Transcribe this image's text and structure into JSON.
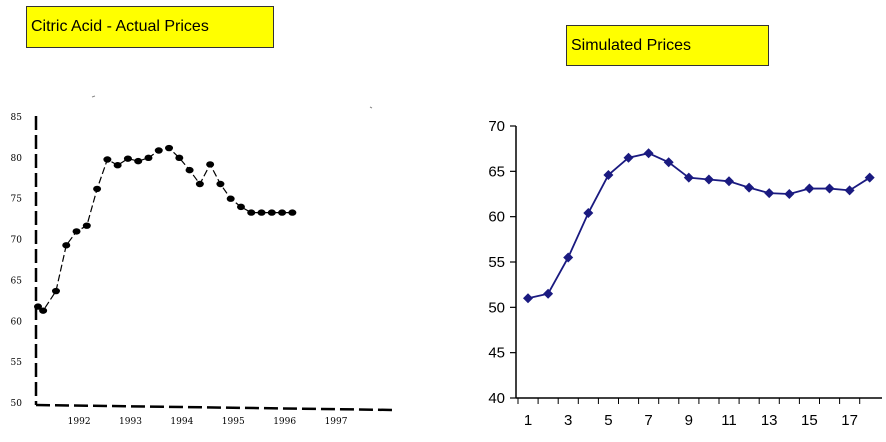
{
  "chart_data": [
    {
      "type": "line",
      "title": "Citric Acid - Actual Prices",
      "xlabel": "",
      "ylabel": "",
      "x_tick_labels": [
        "1992",
        "1993",
        "1994",
        "1995",
        "1996",
        "1997"
      ],
      "y_tick_labels": [
        "85",
        "80",
        "75",
        "70",
        "65",
        "60",
        "55",
        "50"
      ],
      "ylim": [
        50,
        85
      ],
      "xlim": [
        1991.2,
        1997.7
      ],
      "grid": false,
      "style": "dashed hand-drawn line with black dot markers",
      "series": [
        {
          "x": [
            1991.2,
            1991.3,
            1991.55,
            1991.75,
            1991.95,
            1992.15,
            1992.35,
            1992.55,
            1992.75,
            1992.95,
            1993.15,
            1993.35,
            1993.55,
            1993.75,
            1993.95,
            1994.15,
            1994.35,
            1994.55,
            1994.75,
            1994.95,
            1995.15,
            1995.35,
            1995.55,
            1995.75,
            1995.95,
            1996.15
          ],
          "y": [
            61.8,
            61.3,
            63.7,
            69.3,
            71.0,
            71.7,
            76.2,
            79.8,
            79.1,
            79.9,
            79.6,
            80.0,
            80.9,
            81.2,
            80.0,
            78.5,
            76.8,
            79.2,
            76.8,
            75.0,
            74.0,
            73.3,
            73.3,
            73.3,
            73.3,
            73.3
          ]
        }
      ]
    },
    {
      "type": "line",
      "title": "Simulated Prices",
      "xlabel": "",
      "ylabel": "",
      "x_tick_labels": [
        "1",
        "3",
        "5",
        "7",
        "9",
        "11",
        "13",
        "15",
        "17"
      ],
      "y_tick_labels": [
        "70",
        "65",
        "60",
        "55",
        "50",
        "45",
        "40"
      ],
      "ylim": [
        40,
        70
      ],
      "xlim": [
        1,
        18
      ],
      "grid": false,
      "series_color": "#1a1a80",
      "series": [
        {
          "x": [
            1,
            2,
            3,
            4,
            5,
            6,
            7,
            8,
            9,
            10,
            11,
            12,
            13,
            14,
            15,
            16,
            17,
            18
          ],
          "y": [
            51.0,
            51.5,
            55.5,
            60.4,
            64.6,
            66.5,
            67.0,
            66.0,
            64.3,
            64.1,
            63.9,
            63.2,
            62.6,
            62.5,
            63.1,
            63.1,
            62.9,
            64.3
          ]
        }
      ]
    }
  ]
}
